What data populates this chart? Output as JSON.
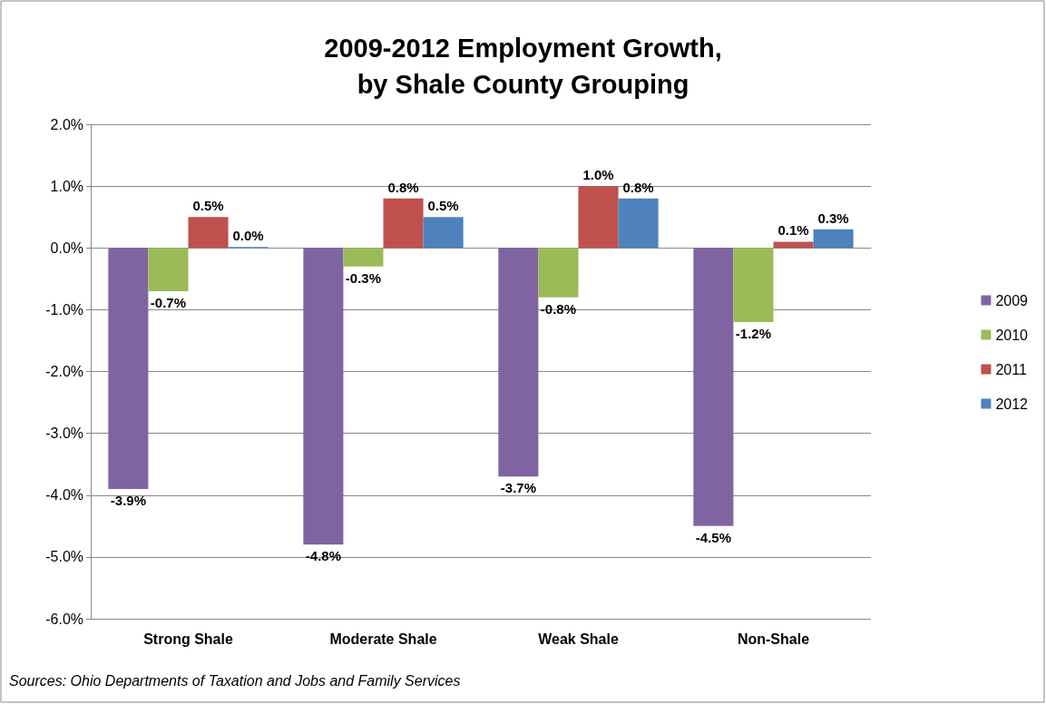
{
  "chart_data": {
    "type": "bar",
    "title": "2009-2012 Employment Growth,\nby Shale County Grouping",
    "categories": [
      "Strong Shale",
      "Moderate Shale",
      "Weak Shale",
      "Non-Shale"
    ],
    "series": [
      {
        "name": "2009",
        "color": "#8064a2",
        "values": [
          -3.9,
          -4.8,
          -3.7,
          -4.5
        ],
        "value_labels": [
          "-3.9%",
          "-4.8%",
          "-3.7%",
          "-4.5%"
        ]
      },
      {
        "name": "2010",
        "color": "#9bbb59",
        "values": [
          -0.7,
          -0.3,
          -0.8,
          -1.2
        ],
        "value_labels": [
          "-0.7%",
          "-0.3%",
          "-0.8%",
          "-1.2%"
        ]
      },
      {
        "name": "2011",
        "color": "#c0504d",
        "values": [
          0.5,
          0.8,
          1.0,
          0.1
        ],
        "value_labels": [
          "0.5%",
          "0.8%",
          "1.0%",
          "0.1%"
        ]
      },
      {
        "name": "2012",
        "color": "#4f81bd",
        "values": [
          0.0,
          0.5,
          0.8,
          0.3
        ],
        "value_labels": [
          "0.0%",
          "0.5%",
          "0.8%",
          "0.3%"
        ]
      }
    ],
    "ylim": [
      -6,
      2
    ],
    "yticks": [
      {
        "value": -6,
        "label": "-6.0%"
      },
      {
        "value": -5,
        "label": "-5.0%"
      },
      {
        "value": -4,
        "label": "-4.0%"
      },
      {
        "value": -3,
        "label": "-3.0%"
      },
      {
        "value": -2,
        "label": "-2.0%"
      },
      {
        "value": -1,
        "label": "-1.0%"
      },
      {
        "value": 0,
        "label": "0.0%"
      },
      {
        "value": 1,
        "label": "1.0%"
      },
      {
        "value": 2,
        "label": "2.0%"
      }
    ],
    "grid": "y",
    "legend": "right",
    "annotations": [
      "Sources: Ohio Departments of Taxation and Jobs and Family Services"
    ]
  }
}
